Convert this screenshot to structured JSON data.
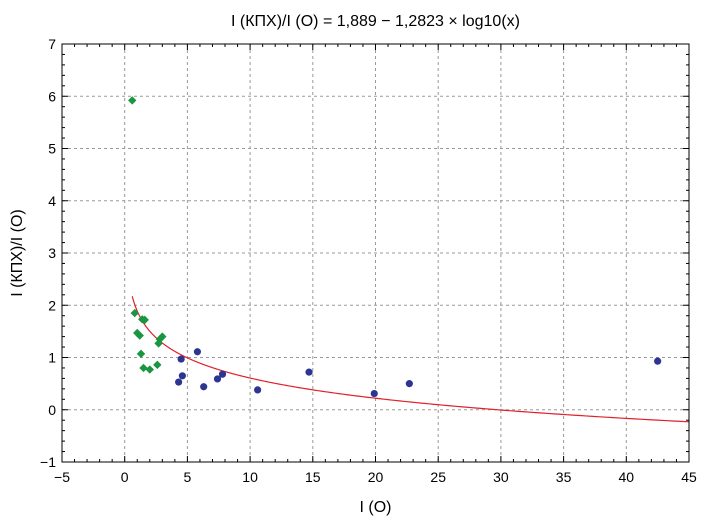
{
  "chart_data": {
    "type": "scatter",
    "title": "I (КПХ)/I (O) = 1,889 − 1,2823 × log10(x)",
    "xlabel": "I (O)",
    "ylabel": "I (КПХ)/I (O)",
    "xlim": [
      -5,
      45
    ],
    "ylim": [
      -1,
      7
    ],
    "xticks": [
      -5,
      0,
      5,
      10,
      15,
      20,
      25,
      30,
      35,
      40,
      45
    ],
    "yticks": [
      -1,
      0,
      1,
      2,
      3,
      4,
      5,
      6,
      7
    ],
    "xtick_labels": [
      "−5",
      "0",
      "5",
      "10",
      "15",
      "20",
      "25",
      "30",
      "35",
      "40",
      "45"
    ],
    "ytick_labels": [
      "−1",
      "0",
      "1",
      "2",
      "3",
      "4",
      "5",
      "6",
      "7"
    ],
    "grid": true,
    "colors": {
      "green": "#1a9641",
      "blue": "#2c3592",
      "fit": "#e0202a",
      "grid": "#9a9a9a"
    },
    "series": [
      {
        "marker": "diamond",
        "color": "#1a9641",
        "points": [
          [
            0.6,
            5.92
          ],
          [
            0.8,
            1.85
          ],
          [
            1.0,
            1.47
          ],
          [
            1.2,
            1.42
          ],
          [
            1.4,
            1.73
          ],
          [
            1.6,
            1.72
          ],
          [
            1.3,
            1.07
          ],
          [
            1.5,
            0.8
          ],
          [
            2.0,
            0.77
          ],
          [
            2.6,
            0.86
          ],
          [
            2.7,
            1.27
          ],
          [
            3.0,
            1.4
          ],
          [
            2.8,
            1.35
          ]
        ]
      },
      {
        "marker": "circle",
        "color": "#2c3592",
        "points": [
          [
            4.3,
            0.53
          ],
          [
            4.5,
            0.97
          ],
          [
            4.6,
            0.65
          ],
          [
            5.8,
            1.11
          ],
          [
            6.3,
            0.44
          ],
          [
            7.4,
            0.59
          ],
          [
            7.8,
            0.68
          ],
          [
            10.6,
            0.38
          ],
          [
            14.7,
            0.72
          ],
          [
            19.9,
            0.31
          ],
          [
            22.7,
            0.5
          ],
          [
            42.5,
            0.93
          ]
        ]
      }
    ],
    "fit": {
      "a": 1.889,
      "b": -1.2823,
      "x_range": [
        0.6,
        45
      ]
    }
  }
}
